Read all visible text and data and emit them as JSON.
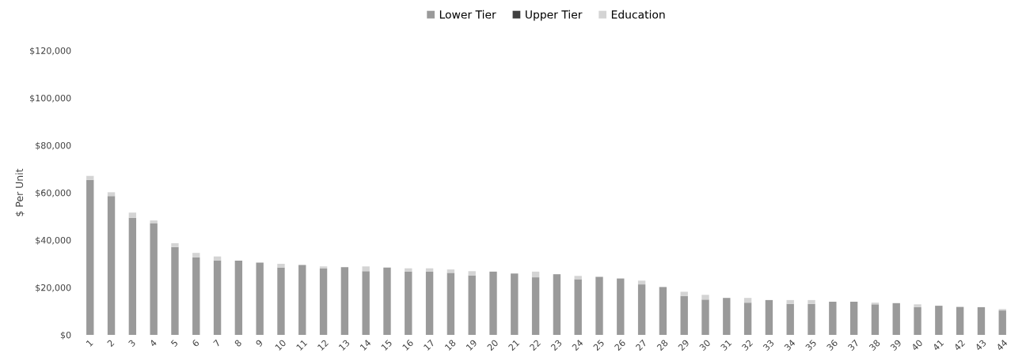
{
  "chart_data": {
    "type": "bar",
    "stacked": true,
    "ylabel": "$ Per Unit",
    "categories": [
      "1",
      "2",
      "3",
      "4",
      "5",
      "6",
      "7",
      "8",
      "9",
      "10",
      "11",
      "12",
      "13",
      "14",
      "15",
      "16",
      "17",
      "18",
      "19",
      "20",
      "21",
      "22",
      "23",
      "24",
      "25",
      "26",
      "27",
      "28",
      "29",
      "30",
      "31",
      "32",
      "33",
      "34",
      "35",
      "36",
      "37",
      "38",
      "39",
      "40",
      "41",
      "42",
      "43",
      "44"
    ],
    "series": [
      {
        "name": "Lower Tier",
        "color": "#9a9a9a",
        "values": [
          65400,
          58600,
          49400,
          47200,
          37100,
          32700,
          31400,
          31300,
          30500,
          28400,
          29500,
          28000,
          28600,
          26900,
          28400,
          26700,
          26700,
          26200,
          25100,
          26700,
          25900,
          24300,
          25600,
          23500,
          24500,
          23800,
          21300,
          20200,
          16400,
          14900,
          15600,
          13600,
          14700,
          13100,
          13100,
          14000,
          14000,
          12900,
          13400,
          11700,
          12300,
          11800,
          11700,
          10300
        ]
      },
      {
        "name": "Upper Tier",
        "color": "#404040",
        "values": [
          0,
          0,
          0,
          0,
          0,
          0,
          0,
          0,
          0,
          0,
          0,
          0,
          0,
          0,
          0,
          0,
          0,
          0,
          0,
          0,
          0,
          0,
          0,
          0,
          0,
          0,
          0,
          0,
          0,
          0,
          0,
          0,
          0,
          0,
          0,
          0,
          0,
          0,
          0,
          0,
          0,
          0,
          0,
          0
        ]
      },
      {
        "name": "Education",
        "color": "#d4d4d4",
        "values": [
          1700,
          1600,
          2200,
          1100,
          1600,
          1900,
          1700,
          0,
          0,
          1600,
          0,
          900,
          0,
          2000,
          0,
          1400,
          1400,
          1400,
          1800,
          0,
          0,
          2400,
          0,
          1400,
          0,
          0,
          1600,
          0,
          1800,
          2000,
          0,
          2000,
          0,
          1600,
          1600,
          0,
          0,
          700,
          0,
          1200,
          0,
          0,
          0,
          600
        ]
      }
    ],
    "ylim": [
      0,
      120000
    ],
    "yticks": [
      {
        "value": 0,
        "label": "$0"
      },
      {
        "value": 20000,
        "label": "$20,000"
      },
      {
        "value": 40000,
        "label": "$40,000"
      },
      {
        "value": 60000,
        "label": "$60,000"
      },
      {
        "value": 80000,
        "label": "$80,000"
      },
      {
        "value": 100000,
        "label": "$100,000"
      },
      {
        "value": 120000,
        "label": "$120,000"
      }
    ],
    "grid": false,
    "legend": "top"
  }
}
